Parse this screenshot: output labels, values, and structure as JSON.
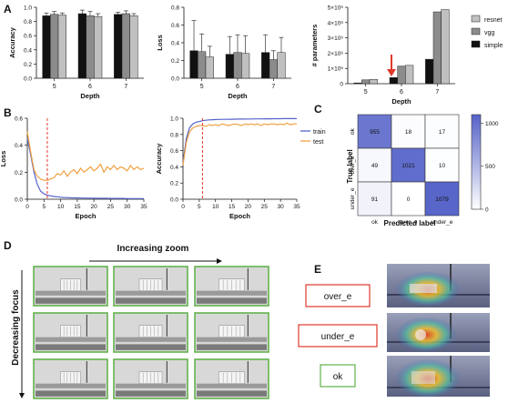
{
  "panels": {
    "A": "A",
    "B": "B",
    "C": "C",
    "D": "D",
    "E": "E"
  },
  "colors": {
    "simple": "#111111",
    "vgg": "#8c8c8c",
    "resnet": "#c0c0c0",
    "train": "#5562c8",
    "test": "#f0a040",
    "marker": "#e0392b"
  },
  "panelA": {
    "xlabel": "Depth",
    "depth_ticks": [
      "5",
      "6",
      "7"
    ],
    "legend": [
      "resnet",
      "vgg",
      "simple"
    ]
  },
  "panelB": {
    "xlabel": "Epoch",
    "legend": [
      "train",
      "test"
    ]
  },
  "panelC": {
    "ylabel": "True label",
    "xlabel": "Predicted label",
    "classes": [
      "ok",
      "over_e",
      "under_e"
    ],
    "colorbar_ticks": [
      "1000",
      "500",
      "0"
    ]
  },
  "panelD": {
    "top_label": "Increasing zoom",
    "side_label": "Decreasing focus"
  },
  "panelE": {
    "labels": [
      "over_e",
      "under_e",
      "ok"
    ]
  },
  "chart_data": [
    {
      "type": "bar",
      "id": "A-accuracy",
      "categories": [
        "5",
        "6",
        "7"
      ],
      "series": [
        {
          "name": "simple",
          "values": [
            0.88,
            0.91,
            0.9
          ],
          "errors": [
            0.04,
            0.05,
            0.03
          ]
        },
        {
          "name": "vgg",
          "values": [
            0.9,
            0.88,
            0.91
          ],
          "errors": [
            0.04,
            0.06,
            0.04
          ]
        },
        {
          "name": "resnet",
          "values": [
            0.89,
            0.87,
            0.88
          ],
          "errors": [
            0.03,
            0.04,
            0.03
          ]
        }
      ],
      "ylabel": "Accuracy",
      "xlabel": "Depth",
      "ylim": [
        0,
        1.0
      ],
      "yticks": [
        "0.0",
        "0.2",
        "0.4",
        "0.6",
        "0.8",
        "1.0"
      ]
    },
    {
      "type": "bar",
      "id": "A-loss",
      "categories": [
        "5",
        "6",
        "7"
      ],
      "series": [
        {
          "name": "simple",
          "values": [
            0.31,
            0.27,
            0.29
          ],
          "errors": [
            0.34,
            0.2,
            0.2
          ]
        },
        {
          "name": "vgg",
          "values": [
            0.3,
            0.29,
            0.21
          ],
          "errors": [
            0.2,
            0.2,
            0.1
          ]
        },
        {
          "name": "resnet",
          "values": [
            0.24,
            0.28,
            0.29
          ],
          "errors": [
            0.12,
            0.2,
            0.17
          ]
        }
      ],
      "ylabel": "Loss",
      "xlabel": "Depth",
      "ylim": [
        0,
        0.8
      ],
      "yticks": [
        "0.0",
        "0.2",
        "0.4",
        "0.6",
        "0.8"
      ]
    },
    {
      "type": "bar",
      "id": "A-params",
      "categories": [
        "5",
        "6",
        "7"
      ],
      "series": [
        {
          "name": "simple",
          "values": [
            50000,
            400000,
            1600000
          ]
        },
        {
          "name": "vgg",
          "values": [
            250000,
            1150000,
            4700000
          ]
        },
        {
          "name": "resnet",
          "values": [
            280000,
            1200000,
            4850000
          ]
        }
      ],
      "ylabel": "# parameters",
      "xlabel": "Depth",
      "ylim": [
        0,
        5000000
      ],
      "yticks": [
        "0",
        "1×10⁶",
        "2×10⁶",
        "3×10⁶",
        "4×10⁶",
        "5×10⁶"
      ],
      "legend": "right"
    },
    {
      "type": "line",
      "id": "B-loss",
      "x": [
        0,
        1,
        2,
        3,
        4,
        5,
        6,
        7,
        8,
        9,
        10,
        11,
        12,
        13,
        14,
        15,
        16,
        17,
        18,
        19,
        20,
        21,
        22,
        23,
        24,
        25,
        26,
        27,
        28,
        29,
        30,
        31,
        32,
        33,
        34,
        35
      ],
      "series": [
        {
          "name": "train",
          "values": [
            0.45,
            0.33,
            0.2,
            0.11,
            0.06,
            0.04,
            0.03,
            0.025,
            0.02,
            0.018,
            0.015,
            0.013,
            0.012,
            0.011,
            0.01,
            0.01,
            0.009,
            0.009,
            0.008,
            0.008,
            0.008,
            0.007,
            0.007,
            0.007,
            0.007,
            0.006,
            0.006,
            0.006,
            0.006,
            0.006,
            0.005,
            0.005,
            0.005,
            0.005,
            0.005,
            0.005
          ]
        },
        {
          "name": "test",
          "values": [
            0.5,
            0.35,
            0.22,
            0.17,
            0.15,
            0.14,
            0.14,
            0.15,
            0.16,
            0.19,
            0.18,
            0.21,
            0.17,
            0.2,
            0.22,
            0.19,
            0.23,
            0.2,
            0.22,
            0.24,
            0.21,
            0.23,
            0.26,
            0.2,
            0.24,
            0.22,
            0.25,
            0.22,
            0.24,
            0.23,
            0.21,
            0.25,
            0.22,
            0.24,
            0.22,
            0.23
          ]
        }
      ],
      "ylabel": "Loss",
      "xlabel": "Epoch",
      "xlim": [
        0,
        35
      ],
      "ylim": [
        0,
        0.6
      ],
      "xticks": [
        "0",
        "5",
        "10",
        "15",
        "20",
        "25",
        "30",
        "35"
      ],
      "yticks": [
        "0.0",
        "0.2",
        "0.4",
        "0.6"
      ],
      "vline": 6
    },
    {
      "type": "line",
      "id": "B-accuracy",
      "x": [
        0,
        1,
        2,
        3,
        4,
        5,
        6,
        7,
        8,
        9,
        10,
        11,
        12,
        13,
        14,
        15,
        16,
        17,
        18,
        19,
        20,
        21,
        22,
        23,
        24,
        25,
        26,
        27,
        28,
        29,
        30,
        31,
        32,
        33,
        34,
        35
      ],
      "series": [
        {
          "name": "train",
          "values": [
            0.45,
            0.75,
            0.88,
            0.93,
            0.95,
            0.96,
            0.97,
            0.975,
            0.98,
            0.982,
            0.984,
            0.985,
            0.986,
            0.987,
            0.988,
            0.988,
            0.989,
            0.99,
            0.99,
            0.99,
            0.991,
            0.991,
            0.992,
            0.992,
            0.992,
            0.993,
            0.993,
            0.993,
            0.994,
            0.994,
            0.994,
            0.995,
            0.995,
            0.995,
            0.995,
            0.996
          ]
        },
        {
          "name": "test",
          "values": [
            0.42,
            0.7,
            0.83,
            0.88,
            0.9,
            0.91,
            0.91,
            0.9,
            0.92,
            0.91,
            0.92,
            0.91,
            0.93,
            0.92,
            0.91,
            0.92,
            0.93,
            0.92,
            0.91,
            0.93,
            0.92,
            0.93,
            0.92,
            0.93,
            0.91,
            0.93,
            0.92,
            0.93,
            0.93,
            0.92,
            0.93,
            0.92,
            0.94,
            0.92,
            0.93,
            0.93
          ]
        }
      ],
      "ylabel": "Accuracy",
      "xlabel": "Epoch",
      "xlim": [
        0,
        35
      ],
      "ylim": [
        0,
        1.0
      ],
      "xticks": [
        "0",
        "5",
        "10",
        "15",
        "20",
        "25",
        "30",
        "35"
      ],
      "yticks": [
        "0.0",
        "0.2",
        "0.4",
        "0.6",
        "0.8",
        "1.0"
      ],
      "vline": 6,
      "legend": "right"
    },
    {
      "type": "heatmap",
      "id": "C-confusion",
      "rows": [
        "ok",
        "over_e",
        "under_e"
      ],
      "cols": [
        "ok",
        "over_e",
        "under_e"
      ],
      "values": [
        [
          955,
          18,
          17
        ],
        [
          49,
          1021,
          10
        ],
        [
          91,
          0,
          1079
        ]
      ],
      "ylabel": "True label",
      "xlabel": "Predicted label",
      "colorbar_range": [
        0,
        1100
      ]
    }
  ]
}
